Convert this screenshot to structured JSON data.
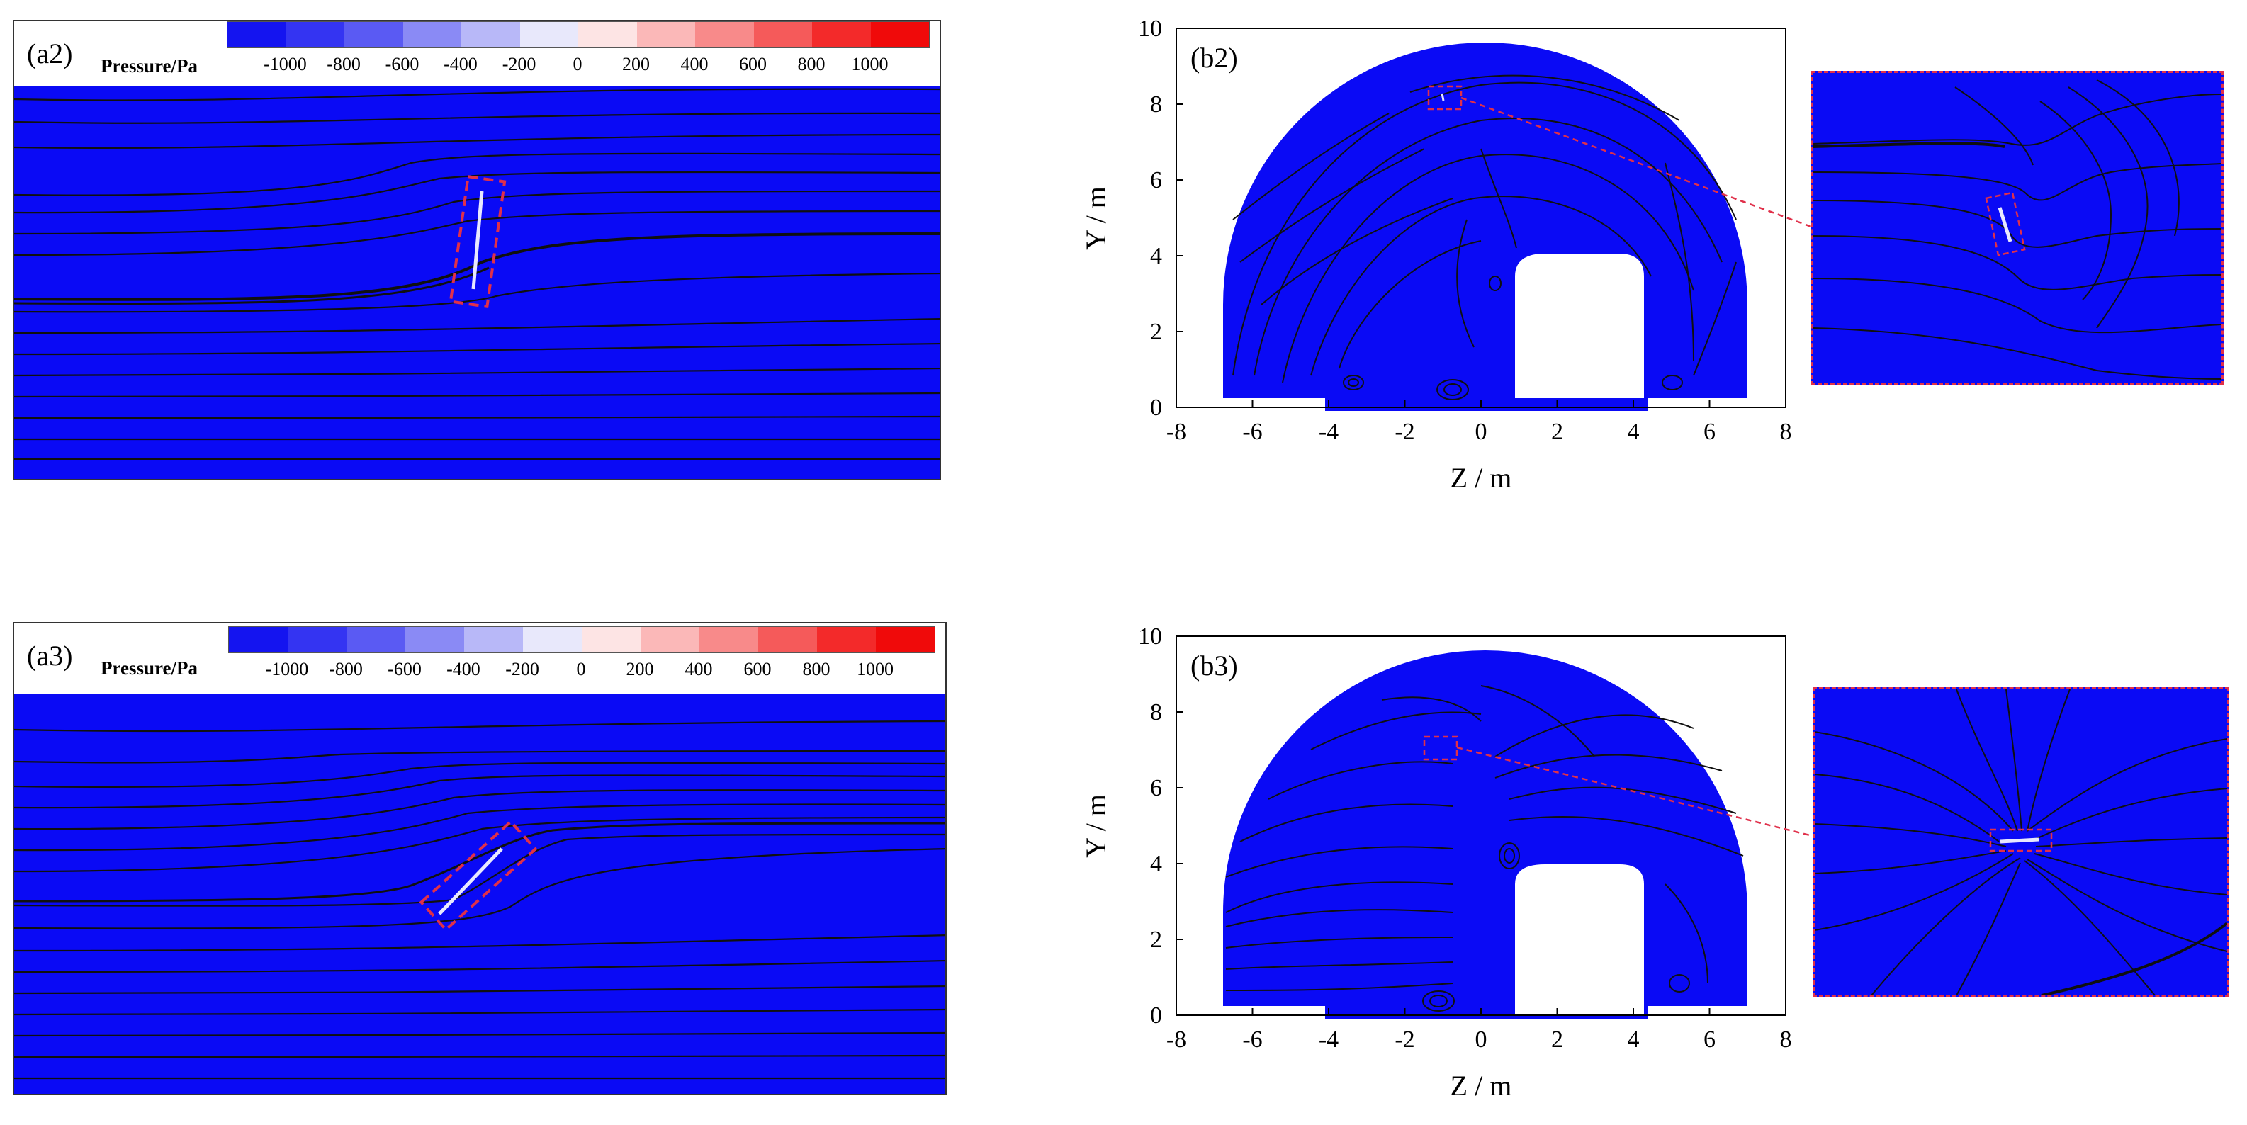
{
  "colorbar": {
    "title": "Pressure/Pa",
    "ticks": [
      "-1000",
      "-800",
      "-600",
      "-400",
      "-200",
      "0",
      "200",
      "400",
      "600",
      "800",
      "1000"
    ],
    "colors": [
      "#1414f0",
      "#3434f2",
      "#5a5af3",
      "#8a8af5",
      "#b8b8f8",
      "#e8e8fb",
      "#fde4e4",
      "#fbb8b8",
      "#f88a8a",
      "#f55a5a",
      "#f32a2a",
      "#f00a0a"
    ]
  },
  "colors": {
    "flow": "#0a0af5",
    "streamline": "#101010",
    "highlight": "#e0304a",
    "plate": "#e8e8ff"
  },
  "panels": {
    "a2": {
      "label": "(a2)"
    },
    "a3": {
      "label": "(a3)"
    },
    "b2": {
      "label": "(b2)"
    },
    "b3": {
      "label": "(b3)"
    }
  },
  "axes": {
    "xlabel": "Z / m",
    "ylabel": "Y / m",
    "xticks": [
      "-8",
      "-6",
      "-4",
      "-2",
      "0",
      "2",
      "4",
      "6",
      "8"
    ],
    "yticks": [
      "0",
      "2",
      "4",
      "6",
      "8",
      "10"
    ],
    "xlim": [
      -8,
      8
    ],
    "ylim": [
      0,
      10
    ]
  }
}
